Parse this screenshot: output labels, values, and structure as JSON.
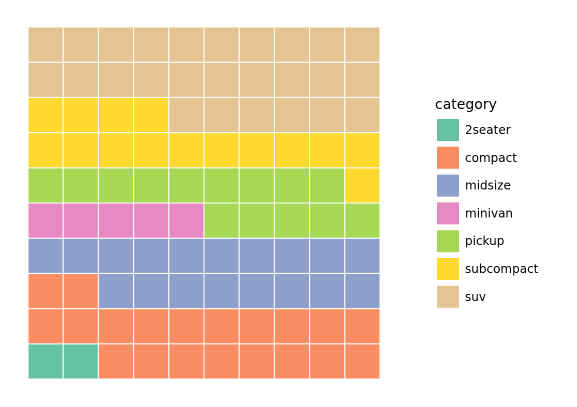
{
  "chart_data": {
    "type": "waffle",
    "rows": 10,
    "cols": 10,
    "fill_order": "column-wise within each row from bottom-left, left to right, bottom to top",
    "legend": {
      "title": "category",
      "position": "right"
    },
    "categories": [
      "2seater",
      "compact",
      "midsize",
      "minivan",
      "pickup",
      "subcompact",
      "suv"
    ],
    "values": [
      2,
      20,
      18,
      5,
      14,
      15,
      26
    ],
    "colors": {
      "2seater": "#66c2a5",
      "compact": "#fc8d62",
      "midsize": "#8da0cb",
      "minivan": "#e78ac3",
      "pickup": "#a6d854",
      "subcompact": "#ffd92f",
      "suv": "#e5c494"
    },
    "grid": false
  }
}
